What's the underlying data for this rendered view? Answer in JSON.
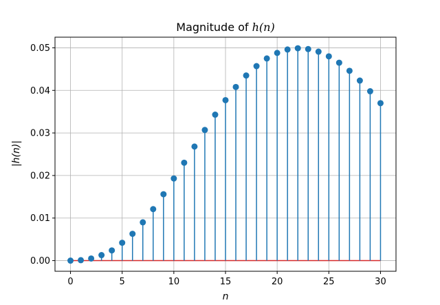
{
  "chart_data": {
    "type": "stem",
    "title_prefix": "Magnitude of ",
    "title_math": "h(n)",
    "xlabel": "n",
    "ylabel": "|h(n)|",
    "xlim": [
      -1.5,
      31.5
    ],
    "ylim": [
      -0.0025,
      0.0525
    ],
    "xticks": [
      0,
      5,
      10,
      15,
      20,
      25,
      30
    ],
    "xtick_labels": [
      "0",
      "5",
      "10",
      "15",
      "20",
      "25",
      "30"
    ],
    "yticks": [
      0.0,
      0.01,
      0.02,
      0.03,
      0.04,
      0.05
    ],
    "ytick_labels": [
      "0.00",
      "0.01",
      "0.02",
      "0.03",
      "0.04",
      "0.05"
    ],
    "grid": true,
    "stem_color": "#1f77b4",
    "baseline_color": "#d62728",
    "x": [
      0,
      1,
      2,
      3,
      4,
      5,
      6,
      7,
      8,
      9,
      10,
      11,
      12,
      13,
      14,
      15,
      16,
      17,
      18,
      19,
      20,
      21,
      22,
      23,
      24,
      25,
      26,
      27,
      28,
      29,
      30
    ],
    "values": [
      0.0,
      0.0001,
      0.0005,
      0.0013,
      0.0024,
      0.0042,
      0.0063,
      0.009,
      0.0121,
      0.0156,
      0.0193,
      0.023,
      0.0268,
      0.0307,
      0.0343,
      0.0377,
      0.0408,
      0.0435,
      0.0457,
      0.0475,
      0.0488,
      0.0496,
      0.0499,
      0.0497,
      0.0491,
      0.048,
      0.0465,
      0.0446,
      0.0423,
      0.0398,
      0.037
    ]
  }
}
